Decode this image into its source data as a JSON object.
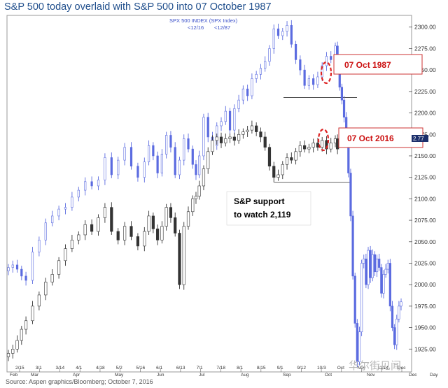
{
  "title": "S&P 500 today overlaid with S&P 500 into 07 October 1987",
  "index_label": "SPX 500 INDEX  (SPX Index)",
  "index_date_1": "<12/16",
  "index_date_2": "<12/87",
  "source": "Source: Aspen graphics/Bloomberg; October 7, 2016",
  "watermark": "华尔街见闻",
  "last_value_label": "2.77",
  "callouts": [
    {
      "text": "07 Oct 1987"
    },
    {
      "text": "07 Oct 2016"
    }
  ],
  "support_text": [
    "S&P support",
    "to watch 2,119"
  ],
  "chart_data": {
    "type": "line",
    "title": "S&P 500 today overlaid with S&P 500 into 07 October 1987",
    "ylim": [
      1900,
      2312
    ],
    "y_ticks": [
      1925,
      1950,
      1975,
      2000,
      2025,
      2050,
      2075,
      2100,
      2125,
      2150,
      2175,
      2200,
      2225,
      2250,
      2275,
      2300
    ],
    "y_tick_labels": [
      "1925.00",
      "1950.00",
      "1975.00",
      "2000.00",
      "2025.00",
      "2050.00",
      "2075.00",
      "2100.00",
      "2125.00",
      "2150.00",
      "2175.00",
      "2200.00",
      "2225.00",
      "2250.00",
      "2275.00",
      "2300.00"
    ],
    "x_tick_labels": [
      "2/15",
      "3/1",
      "3/14",
      "4/1",
      "4/18",
      "5/2",
      "5/16",
      "6/1",
      "6/13",
      "7/1",
      "7/18",
      "8/1",
      "8/15",
      "9/1",
      "9/12",
      "10/3",
      "Oct",
      "Nov",
      "11/14",
      "Dec"
    ],
    "x_sub_labels": [
      "Feb",
      "Mar",
      "",
      "Apr",
      "",
      "May",
      "",
      "Jun",
      "",
      "Jul",
      "",
      "Aug",
      "",
      "Sep",
      "",
      "Oct",
      "",
      "Nov",
      "",
      "Dec",
      "Day"
    ],
    "legend": "none",
    "grid": false,
    "support_level": 2119,
    "series": [
      {
        "name": "S&P 500 into 07 October 1987",
        "style": "line",
        "color": "#5b6be0",
        "x": [
          0,
          4,
          8,
          12,
          16,
          22,
          28,
          34,
          40,
          46,
          52,
          58,
          64,
          70,
          76,
          82,
          88,
          94,
          100,
          106,
          112,
          118,
          124,
          128,
          132,
          136,
          140,
          144,
          148,
          152,
          156,
          160,
          164,
          168,
          171,
          174,
          178,
          182,
          186,
          190,
          194,
          198,
          202,
          206,
          210,
          214,
          218,
          222,
          226,
          230,
          234,
          238,
          242,
          246,
          250,
          254,
          258,
          262,
          266,
          270,
          274,
          278,
          282,
          286,
          290,
          294,
          298,
          300,
          302,
          304,
          306,
          308,
          310,
          312,
          314,
          316,
          318,
          320,
          322,
          324,
          326,
          328,
          330,
          332,
          334,
          336,
          338,
          340,
          342,
          344,
          346,
          348,
          350,
          352,
          354,
          356,
          358
        ],
        "y": [
          2020,
          2023,
          2018,
          2010,
          2005,
          2038,
          2052,
          2072,
          2080,
          2088,
          2090,
          2102,
          2110,
          2120,
          2115,
          2122,
          2148,
          2128,
          2145,
          2160,
          2138,
          2125,
          2143,
          2162,
          2150,
          2130,
          2152,
          2174,
          2160,
          2128,
          2145,
          2170,
          2158,
          2140,
          2128,
          2150,
          2195,
          2172,
          2162,
          2185,
          2190,
          2202,
          2180,
          2205,
          2215,
          2228,
          2220,
          2240,
          2245,
          2252,
          2260,
          2275,
          2298,
          2290,
          2295,
          2302,
          2280,
          2262,
          2250,
          2232,
          2240,
          2233,
          2242,
          2255,
          2266,
          2262,
          2278,
          2255,
          2230,
          2215,
          2195,
          2165,
          2130,
          2080,
          2010,
          1955,
          1910,
          1945,
          2025,
          2030,
          2000,
          2040,
          2008,
          2035,
          2015,
          2030,
          2020,
          1990,
          2012,
          2018,
          2025,
          1975,
          1950,
          1930,
          1960,
          1975,
          1980
        ]
      },
      {
        "name": "S&P 500 today",
        "style": "candles",
        "color": "#222222",
        "x": [
          0,
          4,
          8,
          12,
          16,
          22,
          28,
          34,
          40,
          46,
          52,
          58,
          64,
          70,
          76,
          82,
          88,
          94,
          100,
          106,
          112,
          118,
          124,
          128,
          132,
          136,
          140,
          144,
          148,
          152,
          156,
          160,
          164,
          168,
          171,
          174,
          178,
          182,
          186,
          190,
          194,
          198,
          202,
          206,
          210,
          214,
          218,
          222,
          226,
          230,
          234,
          238,
          242,
          246,
          250,
          254,
          258,
          262,
          266,
          270,
          274,
          278,
          282,
          286,
          290,
          294,
          298,
          300
        ],
        "y": [
          1920,
          1925,
          1935,
          1948,
          1958,
          1975,
          1988,
          2003,
          2012,
          2028,
          2042,
          2052,
          2058,
          2070,
          2062,
          2078,
          2090,
          2062,
          2052,
          2068,
          2056,
          2045,
          2062,
          2080,
          2065,
          2052,
          2068,
          2090,
          2078,
          2060,
          2000,
          2068,
          2085,
          2100,
          2103,
          2115,
          2135,
          2155,
          2168,
          2172,
          2165,
          2170,
          2172,
          2168,
          2175,
          2178,
          2180,
          2185,
          2178,
          2172,
          2160,
          2138,
          2125,
          2128,
          2140,
          2148,
          2145,
          2155,
          2162,
          2158,
          2160,
          2165,
          2160,
          2168,
          2158,
          2165,
          2170,
          2158
        ]
      }
    ],
    "annotations": [
      {
        "label": "07 Oct 1987",
        "x": 300,
        "y": 2242
      },
      {
        "label": "07 Oct 2016",
        "x": 300,
        "y": 2163
      }
    ]
  }
}
